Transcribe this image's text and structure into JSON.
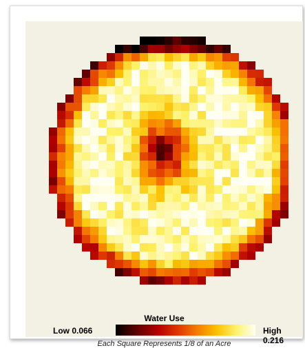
{
  "chart_data": {
    "type": "heatmap",
    "title": "",
    "legend": {
      "title": "Water Use",
      "low_label": "Low 0.066",
      "high_label": "High 0.216",
      "min": 0.066,
      "max": 0.216,
      "colors": [
        "#000000",
        "#5a0000",
        "#b30000",
        "#e03a00",
        "#f57a00",
        "#fbbf00",
        "#fdf26a",
        "#fffff2"
      ]
    },
    "note": "Each Square Represents 1/8 of an Acre",
    "grid": {
      "rows": 30,
      "cols": 32,
      "shape": "circle",
      "center_row": 14.5,
      "center_col": 15.5,
      "radius_cells": 15.0
    },
    "values_description_note": "Approximate values per square: high (yellow-white) over most of field, low (dark red) ring at edges and a low patch at center",
    "values": []
  }
}
